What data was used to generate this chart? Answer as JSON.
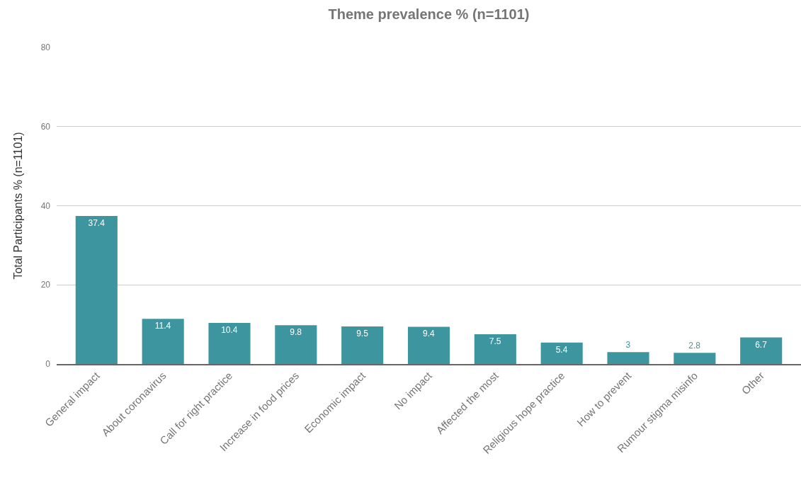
{
  "chart_data": {
    "type": "bar",
    "title": "Theme prevalence % (n=1101)",
    "ylabel": "Total Participants % (n=1101)",
    "categories": [
      "General impact",
      "About coronavirus",
      "Call for right practice",
      "Increase in food prices",
      "Economic impact",
      "No impact",
      "Affected the most",
      "Religious hope practice",
      "How to prevent",
      "Rumour stigma misinfo",
      "Other"
    ],
    "values": [
      37.4,
      11.4,
      10.4,
      9.8,
      9.5,
      9.4,
      7.5,
      5.4,
      3,
      2.8,
      6.7
    ],
    "color": "#3d95a0",
    "ylim": [
      0,
      80
    ],
    "yticks": [
      0,
      20,
      40,
      60,
      80
    ],
    "grid": "y",
    "data_labels": true
  }
}
